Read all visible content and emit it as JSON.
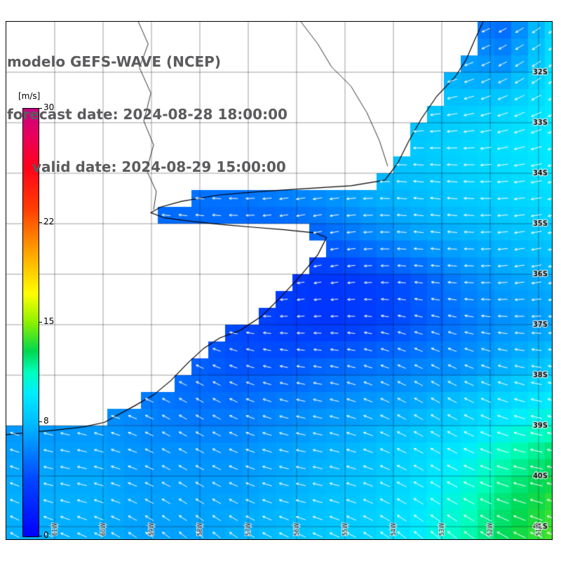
{
  "header": {
    "title": "modelo GEFS-WAVE (NCEP)",
    "forecast_line": "forecast date: 2024-08-28 18:00:00",
    "valid_line": "valid date: 2024-08-29 15:00:00"
  },
  "chart_data": {
    "type": "heatmap",
    "title": "modelo GEFS-WAVE (NCEP)",
    "subtitle_lines": [
      "forecast date: 2024-08-28 18:00:00",
      "valid date: 2024-08-29 15:00:00"
    ],
    "units": "m/s",
    "colorbar": {
      "unit_label": "[m/s]",
      "min": 0,
      "max": 30,
      "ticks": [
        0,
        8,
        15,
        22,
        30
      ],
      "stops": [
        {
          "v": 0,
          "c": "#0000fa"
        },
        {
          "v": 4,
          "c": "#0046ff"
        },
        {
          "v": 6,
          "c": "#0082ff"
        },
        {
          "v": 8,
          "c": "#00beff"
        },
        {
          "v": 10,
          "c": "#00ebff"
        },
        {
          "v": 11.5,
          "c": "#00ffbe"
        },
        {
          "v": 13,
          "c": "#00d750"
        },
        {
          "v": 15,
          "c": "#8cf000"
        },
        {
          "v": 17,
          "c": "#ffff00"
        },
        {
          "v": 20,
          "c": "#ffa000"
        },
        {
          "v": 23,
          "c": "#ff3c00"
        },
        {
          "v": 26,
          "c": "#ff001e"
        },
        {
          "v": 28,
          "c": "#eb005a"
        },
        {
          "v": 30,
          "c": "#c80082"
        }
      ]
    },
    "lat_labels": [
      "32S",
      "33S",
      "34S",
      "35S",
      "36S",
      "37S",
      "38S",
      "39S",
      "40S",
      "41S"
    ],
    "lon_labels": [
      "61W",
      "60W",
      "59W",
      "58W",
      "57W",
      "56W",
      "55W",
      "54W",
      "53W",
      "52W",
      "51W"
    ],
    "speed_grid": [
      [
        6,
        6,
        6,
        6,
        6,
        6,
        6,
        6,
        7.5,
        8,
        6,
        5,
        9
      ],
      [
        6,
        6,
        6,
        6,
        6,
        6,
        6,
        7,
        7.5,
        8.5,
        7,
        6.5,
        9.5
      ],
      [
        6,
        6,
        6,
        6,
        6,
        6,
        6,
        7,
        7.5,
        8,
        8.5,
        9,
        10
      ],
      [
        6,
        6,
        6,
        6,
        6,
        6,
        6.5,
        7,
        8,
        8.5,
        9,
        9.5,
        10
      ],
      [
        5.5,
        5.5,
        5.5,
        5.5,
        5.5,
        5.5,
        6,
        6.5,
        7.5,
        8,
        8.5,
        9,
        9.5
      ],
      [
        5,
        5,
        5,
        5,
        5,
        5,
        4.5,
        5,
        6,
        7,
        7.5,
        8,
        8.5
      ],
      [
        4.5,
        4.5,
        4.5,
        4.5,
        4.5,
        4,
        3.5,
        3,
        3.5,
        4.5,
        6,
        7,
        7.5
      ],
      [
        5,
        5,
        5,
        4.5,
        4.5,
        4,
        3.5,
        3,
        3.5,
        4.5,
        5.5,
        6.5,
        7
      ],
      [
        5.5,
        5.5,
        5,
        5,
        5,
        4.5,
        4.5,
        5,
        5.5,
        6,
        6.5,
        7.5,
        8.5
      ],
      [
        6.5,
        6.5,
        6.5,
        6,
        5.5,
        5.5,
        6,
        6.5,
        7,
        7.5,
        8.5,
        9.5,
        10.5
      ],
      [
        7,
        7,
        7,
        6.5,
        6.5,
        6.5,
        7,
        7.5,
        8,
        9,
        10,
        11.5,
        12.5
      ],
      [
        7.5,
        7.5,
        7.5,
        7,
        7,
        7,
        7.5,
        8,
        8.5,
        9.5,
        11,
        12.5,
        13.5
      ],
      [
        7.5,
        7.5,
        7.5,
        7,
        7,
        7.5,
        8,
        8.5,
        9,
        10,
        11.5,
        13,
        14
      ]
    ],
    "direction_deg": {
      "north_edge": 205,
      "south_edge": 148,
      "wobble": 8
    },
    "arrow_color": "#ffffff",
    "land_color": "#ffffff",
    "coastline": [
      [
        0.874,
        0.0
      ],
      [
        0.859,
        0.034
      ],
      [
        0.843,
        0.073
      ],
      [
        0.823,
        0.106
      ],
      [
        0.789,
        0.144
      ],
      [
        0.761,
        0.187
      ],
      [
        0.738,
        0.23
      ],
      [
        0.717,
        0.274
      ],
      [
        0.694,
        0.306
      ],
      [
        0.632,
        0.317
      ],
      [
        0.555,
        0.322
      ],
      [
        0.465,
        0.328
      ],
      [
        0.388,
        0.335
      ],
      [
        0.321,
        0.347
      ],
      [
        0.283,
        0.358
      ],
      [
        0.265,
        0.369
      ],
      [
        0.29,
        0.379
      ],
      [
        0.342,
        0.386
      ],
      [
        0.398,
        0.392
      ],
      [
        0.452,
        0.397
      ],
      [
        0.51,
        0.402
      ],
      [
        0.566,
        0.408
      ],
      [
        0.587,
        0.417
      ],
      [
        0.571,
        0.45
      ],
      [
        0.54,
        0.49
      ],
      [
        0.504,
        0.531
      ],
      [
        0.468,
        0.569
      ],
      [
        0.429,
        0.596
      ],
      [
        0.391,
        0.611
      ],
      [
        0.362,
        0.631
      ],
      [
        0.334,
        0.658
      ],
      [
        0.301,
        0.694
      ],
      [
        0.27,
        0.721
      ],
      [
        0.237,
        0.741
      ],
      [
        0.206,
        0.759
      ],
      [
        0.18,
        0.774
      ],
      [
        0.141,
        0.783
      ],
      [
        0.09,
        0.789
      ],
      [
        0.039,
        0.794
      ],
      [
        0.0,
        0.798
      ]
    ],
    "borders": [
      [
        [
          0.242,
          0.0
        ],
        [
          0.26,
          0.043
        ],
        [
          0.244,
          0.089
        ],
        [
          0.265,
          0.138
        ],
        [
          0.252,
          0.192
        ],
        [
          0.27,
          0.238
        ],
        [
          0.257,
          0.287
        ],
        [
          0.275,
          0.328
        ],
        [
          0.27,
          0.363
        ]
      ],
      [
        [
          0.54,
          0.0
        ],
        [
          0.571,
          0.043
        ],
        [
          0.596,
          0.087
        ],
        [
          0.632,
          0.125
        ],
        [
          0.661,
          0.176
        ],
        [
          0.684,
          0.23
        ],
        [
          0.699,
          0.279
        ]
      ]
    ]
  }
}
